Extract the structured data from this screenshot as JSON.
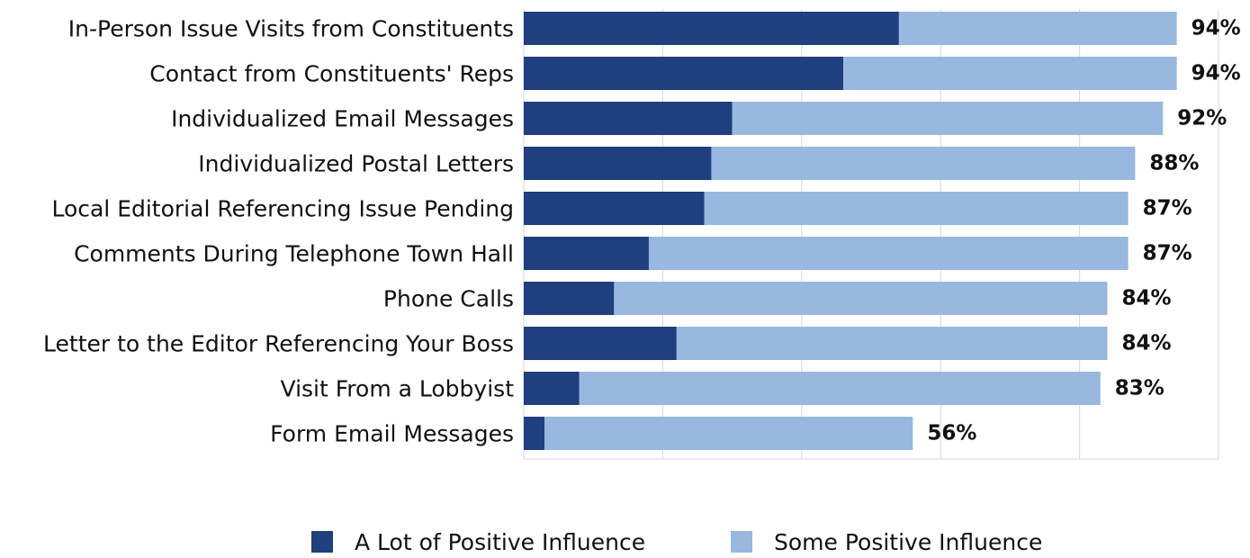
{
  "chart_data": {
    "type": "bar",
    "orientation": "horizontal",
    "stacked": true,
    "categories": [
      "In-Person Issue Visits from Constituents",
      "Contact from Constituents' Reps",
      "Individualized Email Messages",
      "Individualized Postal Letters",
      "Local Editorial Referencing Issue Pending",
      "Comments During Telephone Town Hall",
      "Phone Calls",
      "Letter to the Editor Referencing Your Boss",
      "Visit From a Lobbyist",
      "Form Email Messages"
    ],
    "series": [
      {
        "name": "A Lot of Positive Influence",
        "values": [
          54,
          46,
          30,
          27,
          26,
          18,
          13,
          22,
          8,
          3
        ]
      },
      {
        "name": "Some Positive Influence",
        "values": [
          40,
          48,
          62,
          61,
          61,
          69,
          71,
          62,
          75,
          53
        ]
      }
    ],
    "totals": [
      "94%",
      "94%",
      "92%",
      "88%",
      "87%",
      "87%",
      "84%",
      "84%",
      "83%",
      "56%"
    ],
    "xlim": [
      0,
      100
    ],
    "grid": true,
    "legend_position": "bottom",
    "colors": {
      "a_lot": "#1f3f7e",
      "some": "#98b8df"
    }
  }
}
